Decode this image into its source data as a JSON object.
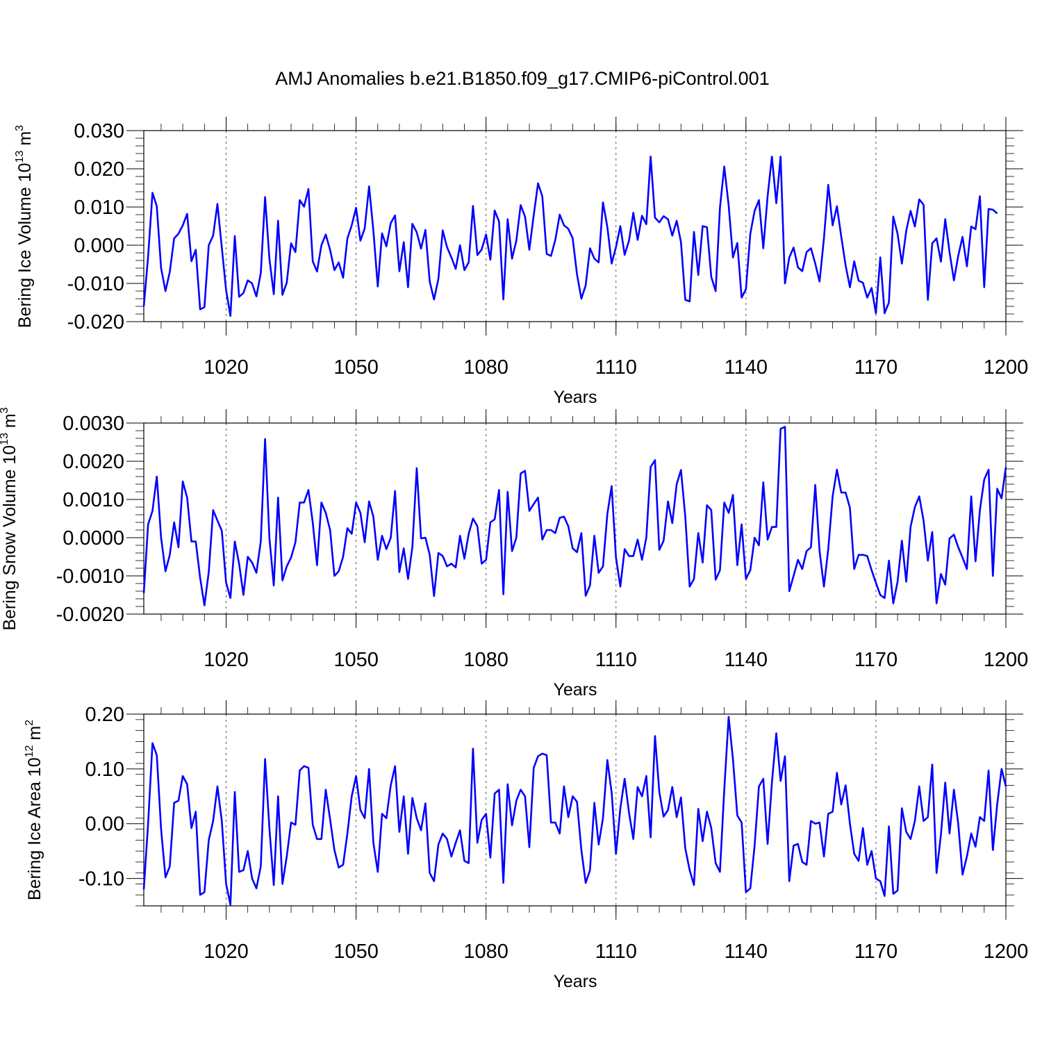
{
  "title": "AMJ Anomalies b.e21.B1850.f09_g17.CMIP6-piControl.001",
  "line_color": "#0000ff",
  "chart_data": [
    {
      "type": "line",
      "ylabel_text": "Bering Ice Volume 10",
      "ylabel_exp": "13",
      "ylabel_unit": " m",
      "ylabel_unit_exp": "3",
      "xlabel": "Years",
      "xlim": [
        1001,
        1200
      ],
      "ylim": [
        -0.02,
        0.03
      ],
      "xticks": [
        1020,
        1050,
        1080,
        1110,
        1140,
        1170,
        1200
      ],
      "xtick_labels": [
        "1020",
        "1050",
        "1080",
        "1110",
        "1140",
        "1170",
        "1200"
      ],
      "yticks": [
        -0.02,
        -0.01,
        0.0,
        0.01,
        0.02,
        0.03
      ],
      "ytick_labels": [
        "-0.020",
        "-0.010",
        "0.000",
        "0.010",
        "0.020",
        "0.030"
      ],
      "series": [
        {
          "name": "Bering Ice Volume",
          "start_year": 1001,
          "values": [
            -0.016,
            -0.003,
            0.0137,
            0.0102,
            -0.006,
            -0.012,
            -0.007,
            0.0018,
            0.003,
            0.0052,
            0.0082,
            -0.0042,
            -0.0012,
            -0.0168,
            -0.0162,
            0.0,
            0.0025,
            0.0108,
            -0.0006,
            -0.0118,
            -0.0185,
            0.0024,
            -0.0135,
            -0.0125,
            -0.0092,
            -0.01,
            -0.0134,
            -0.0073,
            0.0126,
            -0.0035,
            -0.0128,
            0.0064,
            -0.013,
            -0.0098,
            0.0005,
            -0.0018,
            0.0118,
            0.0101,
            0.0147,
            -0.0042,
            -0.0069,
            0.0,
            0.0028,
            -0.0012,
            -0.0065,
            -0.0045,
            -0.0085,
            0.0018,
            0.0052,
            0.0098,
            0.0012,
            0.0044,
            0.0154,
            0.0038,
            -0.0108,
            0.0031,
            -0.0003,
            0.0058,
            0.0078,
            -0.0068,
            0.0008,
            -0.011,
            0.0056,
            0.0034,
            -0.0009,
            0.004,
            -0.0095,
            -0.0142,
            -0.0088,
            0.0039,
            -0.0005,
            -0.0032,
            -0.0062,
            0.0,
            -0.0065,
            -0.0045,
            0.0103,
            -0.0026,
            -0.0011,
            0.0028,
            -0.0038,
            0.0091,
            0.0062,
            -0.0142,
            0.0068,
            -0.0035,
            0.0012,
            0.0105,
            0.0075,
            -0.0012,
            0.0078,
            0.0162,
            0.0128,
            -0.0023,
            -0.0028,
            0.0014,
            0.008,
            0.0052,
            0.0043,
            0.0018,
            -0.0076,
            -0.014,
            -0.0105,
            -0.0008,
            -0.0035,
            -0.0045,
            0.0112,
            0.0048,
            -0.0048,
            -0.0005,
            0.005,
            -0.0025,
            0.0012,
            0.0085,
            0.0014,
            0.0077,
            0.0055,
            0.0232,
            0.0072,
            0.006,
            0.0076,
            0.0068,
            0.0025,
            0.0064,
            0.0008,
            -0.0143,
            -0.0147,
            0.0035,
            -0.0078,
            0.005,
            0.0047,
            -0.0083,
            -0.012,
            0.0098,
            0.0206,
            0.0105,
            -0.0032,
            0.0006,
            -0.0137,
            -0.0115,
            0.003,
            0.009,
            0.0118,
            -0.0008,
            0.0128,
            0.0232,
            0.011,
            0.0232,
            -0.01,
            -0.0032,
            -0.0006,
            -0.0058,
            -0.0068,
            -0.0018,
            -0.0008,
            -0.0048,
            -0.0095,
            0.0018,
            0.0158,
            0.0052,
            0.0102,
            0.0023,
            -0.0053,
            -0.011,
            -0.0042,
            -0.0093,
            -0.0098,
            -0.0137,
            -0.0112,
            -0.0178,
            -0.0032,
            -0.0178,
            -0.015,
            0.0075,
            0.003,
            -0.0048,
            0.0038,
            0.009,
            0.0049,
            0.012,
            0.0106,
            -0.0143,
            0.0005,
            0.0018,
            -0.0043,
            0.0068,
            -0.0018,
            -0.0092,
            -0.0028,
            0.0022,
            -0.0055,
            0.0049,
            0.0042,
            0.0128,
            -0.011,
            0.0095,
            0.0093,
            0.0083
          ]
        }
      ]
    },
    {
      "type": "line",
      "ylabel_text": "Bering Snow Volume 10",
      "ylabel_exp": "13",
      "ylabel_unit": " m",
      "ylabel_unit_exp": "3",
      "xlabel": "Years",
      "xlim": [
        1001,
        1200
      ],
      "ylim": [
        -0.002,
        0.003
      ],
      "xticks": [
        1020,
        1050,
        1080,
        1110,
        1140,
        1170,
        1200
      ],
      "xtick_labels": [
        "1020",
        "1050",
        "1080",
        "1110",
        "1140",
        "1170",
        "1200"
      ],
      "yticks": [
        -0.002,
        -0.001,
        0.0,
        0.001,
        0.002,
        0.003
      ],
      "ytick_labels": [
        "-0.0020",
        "-0.0010",
        "0.0000",
        "0.0010",
        "0.0020",
        "0.0030"
      ],
      "series": [
        {
          "name": "Bering Snow Volume",
          "start_year": 1001,
          "values": [
            -0.00145,
            0.00035,
            0.0007,
            0.0016,
            0.0,
            -0.00088,
            -0.00045,
            0.0004,
            -0.00025,
            0.00147,
            0.00105,
            -0.0001,
            -0.0001,
            -0.00105,
            -0.00177,
            -0.0009,
            0.00072,
            0.00045,
            0.00018,
            -0.00118,
            -0.00158,
            -0.0001,
            -0.00068,
            -0.0015,
            -0.0005,
            -0.00065,
            -0.00092,
            -0.0001,
            0.00258,
            0.0,
            -0.00125,
            0.00105,
            -0.00112,
            -0.00075,
            -0.00052,
            -0.00012,
            0.00092,
            0.00092,
            0.00125,
            0.0004,
            -0.00072,
            0.00092,
            0.00065,
            0.0002,
            -0.001,
            -0.00088,
            -0.0005,
            0.00025,
            0.0001,
            0.00092,
            0.00065,
            -0.00012,
            0.00095,
            0.00055,
            -0.00058,
            5e-05,
            -0.0003,
            0.0,
            0.00122,
            -0.0009,
            -0.00028,
            -0.00108,
            -0.00025,
            0.00182,
            -2e-05,
            0.0,
            -0.00045,
            -0.00153,
            -0.0004,
            -0.00048,
            -0.00075,
            -0.00068,
            -0.00078,
            5e-05,
            -0.00055,
            0.0001,
            0.0005,
            0.0003,
            -0.00068,
            -0.00058,
            0.0004,
            0.00048,
            0.00125,
            -0.00148,
            0.0012,
            -0.00035,
            0.0,
            0.00168,
            0.00175,
            0.0007,
            0.00088,
            0.00105,
            -5e-05,
            0.0002,
            0.0002,
            0.00012,
            0.00052,
            0.00055,
            0.0003,
            -0.00028,
            -0.00038,
            0.00012,
            -0.00152,
            -0.00125,
            5e-05,
            -0.00092,
            -0.00075,
            0.00062,
            0.00135,
            -0.00052,
            -0.00128,
            -0.0003,
            -0.00048,
            -0.00048,
            -5e-05,
            -0.00058,
            0.0,
            0.00185,
            0.00203,
            -0.00032,
            -8e-05,
            0.00095,
            0.00038,
            0.0014,
            0.00177,
            0.00055,
            -0.00128,
            -0.00108,
            0.00012,
            -0.00065,
            0.00085,
            0.00072,
            -0.0011,
            -0.00085,
            0.00092,
            0.00065,
            0.00112,
            -0.00072,
            0.00035,
            -0.00108,
            -0.00085,
            0.0,
            -0.0002,
            0.00145,
            -5e-05,
            0.00028,
            0.00028,
            0.00285,
            0.0029,
            -0.0014,
            -0.001,
            -0.00058,
            -0.00082,
            -0.00035,
            -0.00025,
            0.00138,
            -0.00035,
            -0.00128,
            -0.0003,
            0.00108,
            0.00178,
            0.00118,
            0.00118,
            0.00078,
            -0.00082,
            -0.00045,
            -0.00045,
            -0.00048,
            -0.00085,
            -0.00118,
            -0.0015,
            -0.00158,
            -0.0006,
            -0.00172,
            -0.00115,
            -8e-05,
            -0.00115,
            0.00028,
            0.0008,
            0.00108,
            0.00045,
            -0.0006,
            0.00015,
            -0.00172,
            -0.00095,
            -0.00123,
            -2e-05,
            8e-05,
            -0.00025,
            -0.00052,
            -0.00082,
            0.00108,
            -0.00062,
            0.00072,
            0.00152,
            0.00178,
            -0.001,
            0.00128,
            0.00103,
            0.00185
          ]
        }
      ]
    },
    {
      "type": "line",
      "ylabel_text": "Bering Ice Area 10",
      "ylabel_exp": "12",
      "ylabel_unit": " m",
      "ylabel_unit_exp": "2",
      "xlabel": "Years",
      "xlim": [
        1001,
        1200
      ],
      "ylim": [
        -0.15,
        0.2
      ],
      "xticks": [
        1020,
        1050,
        1080,
        1110,
        1140,
        1170,
        1200
      ],
      "xtick_labels": [
        "1020",
        "1050",
        "1080",
        "1110",
        "1140",
        "1170",
        "1200"
      ],
      "yticks": [
        -0.1,
        0.0,
        0.1,
        0.2
      ],
      "ytick_labels": [
        "-0.10",
        "0.00",
        "0.10",
        "0.20"
      ],
      "series": [
        {
          "name": "Bering Ice Area",
          "start_year": 1001,
          "values": [
            -0.12,
            0.0,
            0.147,
            0.125,
            -0.01,
            -0.098,
            -0.078,
            0.038,
            0.042,
            0.087,
            0.072,
            -0.008,
            0.022,
            -0.13,
            -0.125,
            -0.03,
            0.005,
            0.068,
            0.005,
            -0.11,
            -0.148,
            0.058,
            -0.088,
            -0.085,
            -0.05,
            -0.1,
            -0.118,
            -0.078,
            0.118,
            -0.008,
            -0.112,
            0.05,
            -0.11,
            -0.06,
            0.002,
            -0.002,
            0.097,
            0.105,
            0.102,
            -0.002,
            -0.028,
            -0.028,
            0.062,
            0.008,
            -0.048,
            -0.08,
            -0.075,
            -0.018,
            0.05,
            0.087,
            0.025,
            0.01,
            0.1,
            -0.035,
            -0.088,
            0.018,
            0.01,
            0.07,
            0.105,
            -0.015,
            0.05,
            -0.055,
            0.047,
            0.01,
            -0.012,
            0.037,
            -0.09,
            -0.105,
            -0.038,
            -0.018,
            -0.028,
            -0.06,
            -0.035,
            -0.012,
            -0.068,
            -0.072,
            0.137,
            -0.035,
            0.007,
            0.018,
            -0.062,
            0.055,
            0.062,
            -0.108,
            0.072,
            -0.003,
            0.042,
            0.062,
            0.05,
            -0.043,
            0.102,
            0.123,
            0.128,
            0.125,
            0.002,
            0.002,
            -0.018,
            0.068,
            0.012,
            0.05,
            0.04,
            -0.048,
            -0.108,
            -0.085,
            0.038,
            -0.038,
            0.01,
            0.116,
            0.057,
            -0.055,
            0.028,
            0.082,
            0.02,
            -0.028,
            0.067,
            0.05,
            0.087,
            -0.025,
            0.16,
            0.058,
            0.013,
            0.025,
            0.067,
            0.012,
            0.048,
            -0.045,
            -0.085,
            -0.112,
            0.027,
            -0.032,
            0.022,
            -0.008,
            -0.072,
            -0.088,
            0.062,
            0.195,
            0.118,
            0.015,
            0.002,
            -0.125,
            -0.118,
            -0.04,
            0.068,
            0.082,
            -0.037,
            0.075,
            0.165,
            0.078,
            0.123,
            -0.105,
            -0.04,
            -0.037,
            -0.07,
            -0.075,
            0.005,
            0.0,
            0.002,
            -0.06,
            0.018,
            0.022,
            0.093,
            0.035,
            0.07,
            0.0,
            -0.055,
            -0.068,
            -0.008,
            -0.075,
            -0.05,
            -0.1,
            -0.105,
            -0.132,
            -0.005,
            -0.128,
            -0.122,
            0.028,
            -0.015,
            -0.028,
            0.005,
            0.068,
            0.005,
            0.012,
            0.108,
            -0.09,
            -0.02,
            0.075,
            -0.018,
            0.062,
            0.0,
            -0.093,
            -0.06,
            -0.018,
            -0.042,
            0.012,
            0.005,
            0.097,
            -0.048,
            0.035,
            0.1,
            0.068
          ]
        }
      ]
    }
  ]
}
